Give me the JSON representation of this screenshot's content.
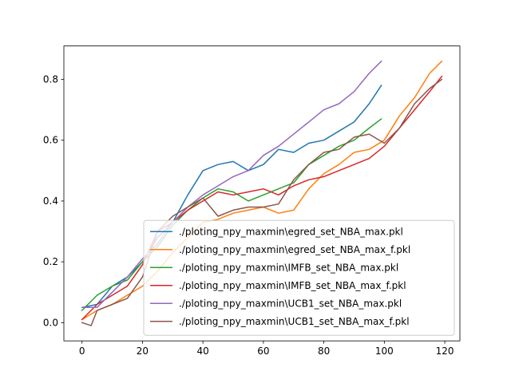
{
  "chart_data": {
    "type": "line",
    "title": "",
    "xlabel": "",
    "ylabel": "",
    "xlim": [
      -6,
      125
    ],
    "ylim": [
      -0.06,
      0.91
    ],
    "xticks": [
      0,
      20,
      40,
      60,
      80,
      100,
      120
    ],
    "yticks": [
      0.0,
      0.2,
      0.4,
      0.6,
      0.8
    ],
    "xtick_labels": [
      "0",
      "20",
      "40",
      "60",
      "80",
      "100",
      "120"
    ],
    "ytick_labels": [
      "0.0",
      "0.2",
      "0.4",
      "0.6",
      "0.8"
    ],
    "grid": false,
    "legend_position": "lower-right",
    "series": [
      {
        "name": "./ploting_npy_maxmin\\egred_set_NBA_max.pkl",
        "color": "#1f77b4",
        "x": [
          0,
          5,
          10,
          15,
          20,
          25,
          30,
          35,
          40,
          45,
          50,
          55,
          60,
          65,
          70,
          75,
          80,
          85,
          90,
          95,
          99
        ],
        "y": [
          0.05,
          0.06,
          0.12,
          0.15,
          0.2,
          0.28,
          0.33,
          0.42,
          0.5,
          0.52,
          0.53,
          0.5,
          0.52,
          0.57,
          0.56,
          0.59,
          0.6,
          0.63,
          0.66,
          0.72,
          0.78
        ]
      },
      {
        "name": "./ploting_npy_maxmin\\egred_set_NBA_max_f.pkl",
        "color": "#ff7f0e",
        "x": [
          0,
          5,
          10,
          15,
          20,
          25,
          30,
          35,
          40,
          45,
          50,
          55,
          60,
          65,
          70,
          75,
          80,
          85,
          90,
          95,
          100,
          105,
          110,
          115,
          119
        ],
        "y": [
          0.01,
          0.04,
          0.06,
          0.09,
          0.12,
          0.17,
          0.23,
          0.28,
          0.33,
          0.34,
          0.36,
          0.37,
          0.38,
          0.36,
          0.37,
          0.44,
          0.49,
          0.52,
          0.56,
          0.57,
          0.6,
          0.68,
          0.74,
          0.82,
          0.86
        ]
      },
      {
        "name": "./ploting_npy_maxmin\\IMFB_set_NBA_max.pkl",
        "color": "#2ca02c",
        "x": [
          0,
          5,
          10,
          15,
          20,
          25,
          30,
          35,
          40,
          45,
          50,
          55,
          60,
          65,
          70,
          75,
          80,
          85,
          90,
          95,
          99
        ],
        "y": [
          0.04,
          0.09,
          0.12,
          0.14,
          0.2,
          0.25,
          0.32,
          0.37,
          0.41,
          0.44,
          0.43,
          0.4,
          0.42,
          0.44,
          0.46,
          0.52,
          0.55,
          0.58,
          0.6,
          0.64,
          0.67
        ]
      },
      {
        "name": "./ploting_npy_maxmin\\IMFB_set_NBA_max_f.pkl",
        "color": "#d62728",
        "x": [
          0,
          5,
          10,
          15,
          20,
          25,
          30,
          35,
          40,
          45,
          50,
          55,
          60,
          65,
          70,
          75,
          80,
          85,
          90,
          95,
          100,
          105,
          110,
          115,
          119
        ],
        "y": [
          0.01,
          0.06,
          0.09,
          0.12,
          0.19,
          0.3,
          0.33,
          0.37,
          0.4,
          0.43,
          0.42,
          0.43,
          0.44,
          0.42,
          0.45,
          0.47,
          0.48,
          0.5,
          0.52,
          0.54,
          0.58,
          0.64,
          0.7,
          0.76,
          0.81
        ]
      },
      {
        "name": "./ploting_npy_maxmin\\UCB1_set_NBA_max.pkl",
        "color": "#9467bd",
        "x": [
          0,
          5,
          10,
          15,
          20,
          25,
          30,
          35,
          40,
          45,
          50,
          55,
          60,
          65,
          70,
          75,
          80,
          85,
          90,
          95,
          99
        ],
        "y": [
          0.05,
          0.05,
          0.1,
          0.15,
          0.21,
          0.26,
          0.33,
          0.38,
          0.42,
          0.45,
          0.48,
          0.5,
          0.55,
          0.58,
          0.62,
          0.66,
          0.7,
          0.72,
          0.76,
          0.82,
          0.86
        ]
      },
      {
        "name": "./ploting_npy_maxmin\\UCB1_set_NBA_max_f.pkl",
        "color": "#8c564b",
        "x": [
          0,
          3,
          5,
          10,
          15,
          20,
          25,
          30,
          35,
          40,
          45,
          50,
          55,
          60,
          65,
          70,
          75,
          80,
          85,
          90,
          95,
          100,
          105,
          110,
          115,
          119
        ],
        "y": [
          0.0,
          -0.01,
          0.04,
          0.06,
          0.08,
          0.15,
          0.3,
          0.35,
          0.38,
          0.41,
          0.35,
          0.37,
          0.38,
          0.38,
          0.39,
          0.47,
          0.52,
          0.56,
          0.57,
          0.61,
          0.62,
          0.59,
          0.64,
          0.72,
          0.77,
          0.8
        ]
      }
    ]
  }
}
